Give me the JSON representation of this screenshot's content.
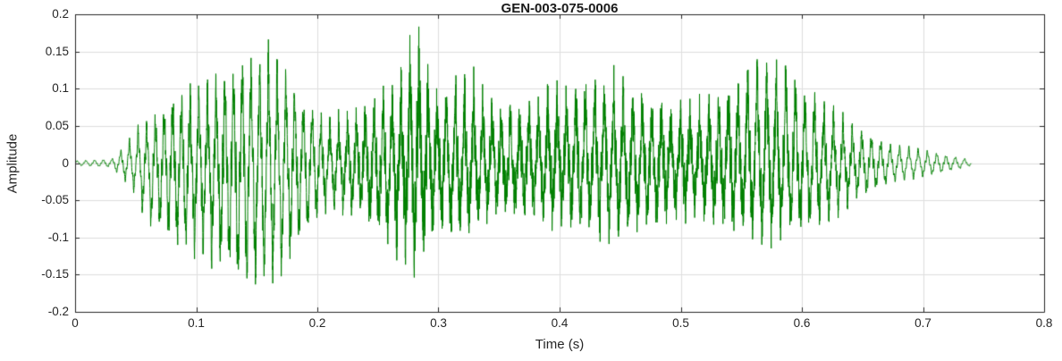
{
  "chart_data": {
    "type": "line",
    "title": "GEN-003-075-0006",
    "xlabel": "Time (s)",
    "ylabel": "Amplitude",
    "xlim": [
      0,
      0.8
    ],
    "ylim": [
      -0.2,
      0.2
    ],
    "xtick_values": [
      0,
      0.1,
      0.2,
      0.3,
      0.4,
      0.5,
      0.6,
      0.7,
      0.8
    ],
    "xtick_labels": [
      "0",
      "0.1",
      "0.2",
      "0.3",
      "0.4",
      "0.5",
      "0.6",
      "0.7",
      "0.8"
    ],
    "ytick_values": [
      -0.2,
      -0.15,
      -0.1,
      -0.05,
      0,
      0.05,
      0.1,
      0.15,
      0.2
    ],
    "ytick_labels": [
      "-0.2",
      "-0.15",
      "-0.1",
      "-0.05",
      "0",
      "0.05",
      "0.1",
      "0.15",
      "0.2"
    ],
    "grid": true,
    "legend": "none",
    "line_color": "#008000",
    "axis_color": "#262626",
    "grid_color": "#dedede",
    "background": "#ffffff",
    "waveform": {
      "t_start": 0,
      "t_end": 0.74,
      "sample_dt": 0.0001,
      "pitch_hz": 133,
      "envelope_t": [
        0.0,
        0.03,
        0.04,
        0.05,
        0.06,
        0.07,
        0.08,
        0.1,
        0.12,
        0.14,
        0.16,
        0.175,
        0.19,
        0.205,
        0.22,
        0.235,
        0.25,
        0.265,
        0.275,
        0.282,
        0.29,
        0.3,
        0.31,
        0.32,
        0.33,
        0.345,
        0.36,
        0.38,
        0.395,
        0.41,
        0.43,
        0.45,
        0.47,
        0.49,
        0.51,
        0.53,
        0.545,
        0.56,
        0.57,
        0.585,
        0.6,
        0.615,
        0.63,
        0.645,
        0.66,
        0.675,
        0.69,
        0.705,
        0.72,
        0.735,
        0.74
      ],
      "envelope_upper": [
        0.003,
        0.005,
        0.02,
        0.045,
        0.06,
        0.08,
        0.11,
        0.125,
        0.135,
        0.145,
        0.143,
        0.12,
        0.09,
        0.07,
        0.08,
        0.095,
        0.11,
        0.13,
        0.16,
        0.19,
        0.14,
        0.1,
        0.13,
        0.11,
        0.13,
        0.1,
        0.11,
        0.1,
        0.13,
        0.11,
        0.12,
        0.12,
        0.11,
        0.1,
        0.1,
        0.11,
        0.12,
        0.15,
        0.155,
        0.145,
        0.12,
        0.1,
        0.08,
        0.06,
        0.04,
        0.025,
        0.02,
        0.015,
        0.01,
        0.006,
        0.003
      ],
      "envelope_lower": [
        -0.003,
        -0.005,
        -0.02,
        -0.04,
        -0.09,
        -0.1,
        -0.13,
        -0.15,
        -0.155,
        -0.16,
        -0.155,
        -0.13,
        -0.1,
        -0.075,
        -0.08,
        -0.09,
        -0.11,
        -0.13,
        -0.15,
        -0.16,
        -0.12,
        -0.09,
        -0.1,
        -0.1,
        -0.11,
        -0.08,
        -0.085,
        -0.09,
        -0.1,
        -0.09,
        -0.1,
        -0.1,
        -0.095,
        -0.095,
        -0.09,
        -0.09,
        -0.095,
        -0.1,
        -0.105,
        -0.1,
        -0.1,
        -0.095,
        -0.08,
        -0.06,
        -0.04,
        -0.025,
        -0.02,
        -0.015,
        -0.01,
        -0.006,
        -0.003
      ],
      "noise_t": [
        0.0,
        0.05,
        0.1,
        0.2,
        0.26,
        0.272,
        0.3,
        0.315,
        0.4,
        0.55,
        0.6,
        0.64,
        0.67,
        0.74
      ],
      "noise_weight": [
        0.02,
        0.08,
        0.15,
        0.15,
        0.25,
        0.35,
        0.35,
        0.28,
        0.28,
        0.28,
        0.22,
        0.12,
        0.05,
        0.02
      ]
    }
  }
}
